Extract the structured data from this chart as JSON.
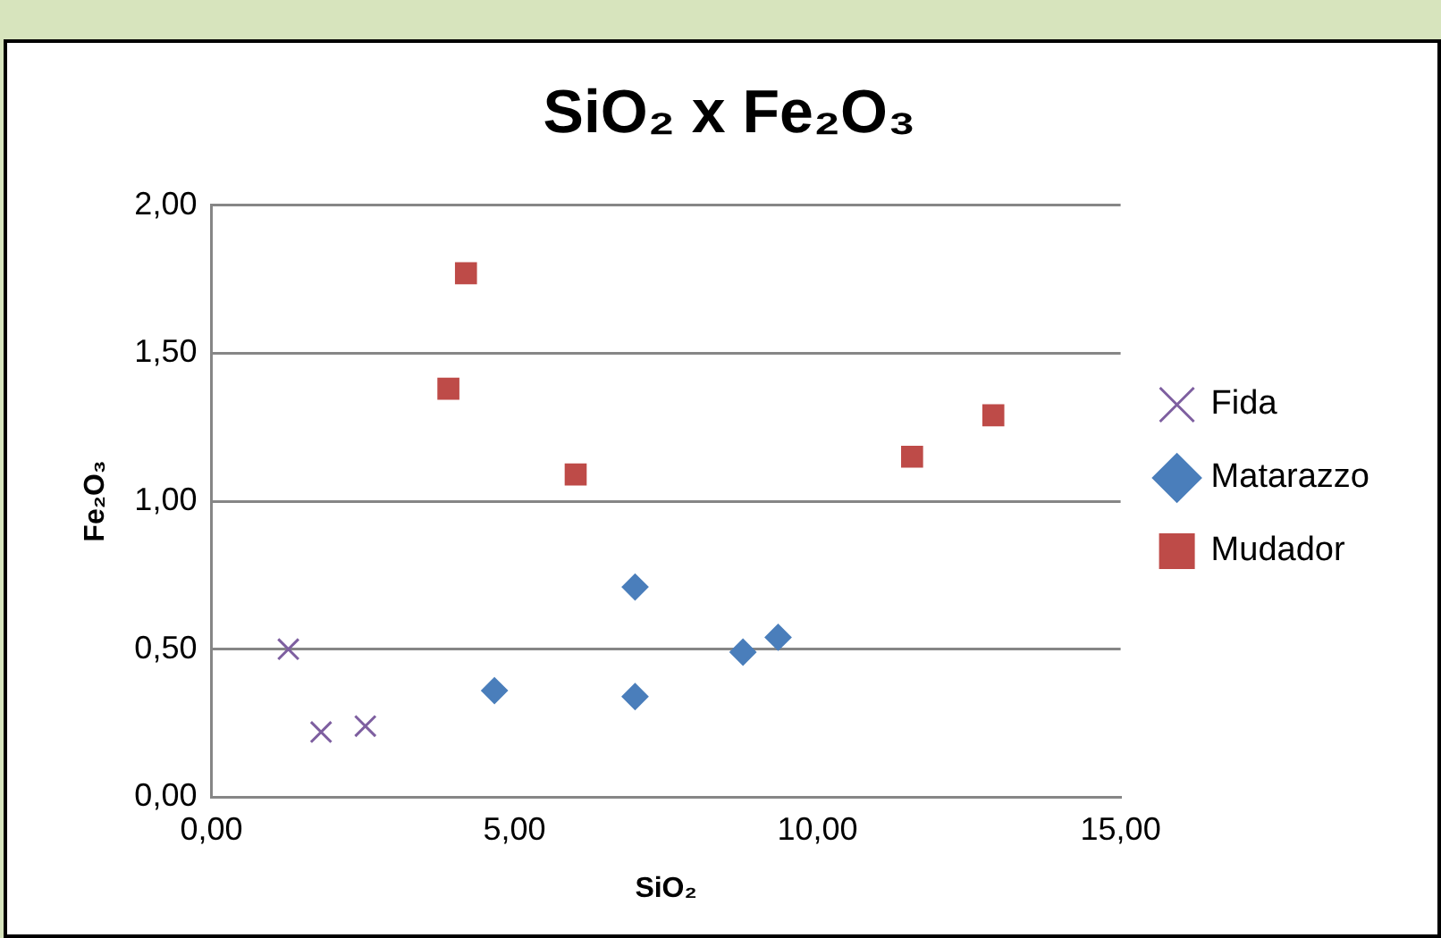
{
  "chart_data": {
    "type": "scatter",
    "title": "SiO₂ x Fe₂O₃",
    "xlabel": "SiO₂",
    "ylabel": "Fe₂O₃",
    "xlim": [
      0,
      15
    ],
    "xticks": [
      {
        "value": 0,
        "label": "0,00"
      },
      {
        "value": 5,
        "label": "5,00"
      },
      {
        "value": 10,
        "label": "10,00"
      },
      {
        "value": 15,
        "label": "15,00"
      }
    ],
    "ylim": [
      0,
      2
    ],
    "yticks": [
      {
        "value": 0,
        "label": "0,00"
      },
      {
        "value": 0.5,
        "label": "0,50"
      },
      {
        "value": 1,
        "label": "1,00"
      },
      {
        "value": 1.5,
        "label": "1,50"
      },
      {
        "value": 2,
        "label": "2,00"
      }
    ],
    "grid": "y",
    "legend": "right",
    "series": [
      {
        "name": "Fida",
        "color": "#7e5fa0",
        "marker": "cross",
        "x": [
          1.27,
          1.81,
          2.54
        ],
        "values": [
          0.5,
          0.22,
          0.24
        ]
      },
      {
        "name": "Matarazzo",
        "color": "#4a7ebb",
        "marker": "diamond",
        "x": [
          4.67,
          6.99,
          6.99,
          8.77,
          9.35
        ],
        "values": [
          0.36,
          0.71,
          0.34,
          0.49,
          0.54
        ]
      },
      {
        "name": "Mudador",
        "color": "#be4b48",
        "marker": "square",
        "x": [
          3.91,
          4.2,
          6.01,
          11.56,
          12.9
        ],
        "values": [
          1.38,
          1.77,
          1.09,
          1.15,
          1.29
        ]
      }
    ]
  }
}
